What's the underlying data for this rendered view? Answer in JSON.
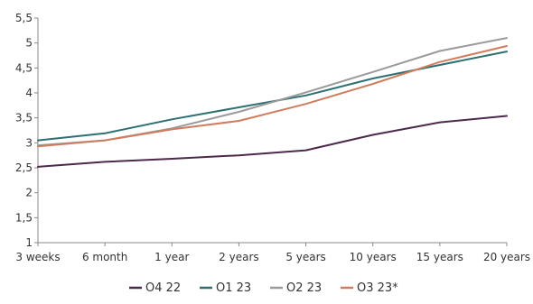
{
  "chart_data": {
    "type": "line",
    "categories": [
      "3 weeks",
      "6 month",
      "1 year",
      "2 years",
      "5 years",
      "10 years",
      "15 years",
      "20 years"
    ],
    "ylim": [
      1,
      5.5
    ],
    "yticks": [
      "1",
      "1,5",
      "2",
      "2,5",
      "3",
      "3,5",
      "4",
      "4,5",
      "5",
      "5,5"
    ],
    "grid": false,
    "legend": "bottom",
    "series": [
      {
        "name": "O4 22",
        "color": "#4b2a4b",
        "values": [
          2.52,
          2.62,
          2.68,
          2.75,
          2.85,
          3.16,
          3.41,
          3.54
        ]
      },
      {
        "name": "O1 23",
        "color": "#2e6f72",
        "values": [
          3.05,
          3.19,
          3.47,
          3.71,
          3.95,
          4.29,
          4.56,
          4.83
        ]
      },
      {
        "name": "O2 23",
        "color": "#9a9a9a",
        "values": [
          2.95,
          3.05,
          3.29,
          3.62,
          4.01,
          4.42,
          4.84,
          5.1
        ]
      },
      {
        "name": "O3 23*",
        "color": "#d07d5f",
        "values": [
          2.93,
          3.05,
          3.27,
          3.44,
          3.78,
          4.18,
          4.62,
          4.94
        ]
      }
    ]
  }
}
